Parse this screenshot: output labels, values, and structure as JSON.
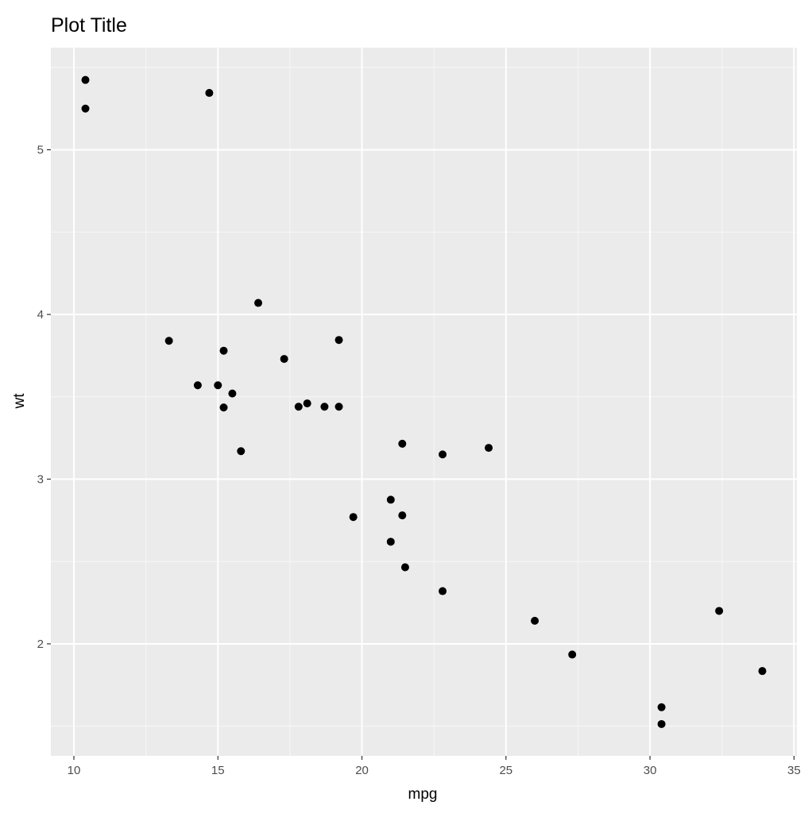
{
  "colors": {
    "panel_background": "#ebebeb",
    "grid_major": "#ffffff",
    "grid_minor": "#f5f5f5",
    "tick_mark": "#333333",
    "tick_label": "#4d4d4d",
    "point": "#000000"
  },
  "chart_data": {
    "type": "scatter",
    "title": "Plot Title",
    "xlabel": "mpg",
    "ylabel": "wt",
    "xlim": [
      9.2,
      35.1
    ],
    "ylim": [
      1.32,
      5.62
    ],
    "xticks": [
      10,
      15,
      20,
      25,
      30,
      35
    ],
    "xtick_labels": [
      "10",
      "15",
      "20",
      "25",
      "30",
      "35"
    ],
    "yticks": [
      2,
      3,
      4,
      5
    ],
    "ytick_labels": [
      "2",
      "3",
      "4",
      "5"
    ],
    "x_minor": [
      12.5,
      17.5,
      22.5,
      27.5,
      32.5
    ],
    "y_minor": [
      1.5,
      2.5,
      3.5,
      4.5,
      5.5
    ],
    "grid": true,
    "legend": "none",
    "points": [
      {
        "x": 21.0,
        "y": 2.62
      },
      {
        "x": 21.0,
        "y": 2.875
      },
      {
        "x": 22.8,
        "y": 2.32
      },
      {
        "x": 21.4,
        "y": 3.215
      },
      {
        "x": 18.7,
        "y": 3.44
      },
      {
        "x": 18.1,
        "y": 3.46
      },
      {
        "x": 14.3,
        "y": 3.57
      },
      {
        "x": 24.4,
        "y": 3.19
      },
      {
        "x": 22.8,
        "y": 3.15
      },
      {
        "x": 19.2,
        "y": 3.44
      },
      {
        "x": 17.8,
        "y": 3.44
      },
      {
        "x": 16.4,
        "y": 4.07
      },
      {
        "x": 17.3,
        "y": 3.73
      },
      {
        "x": 15.2,
        "y": 3.78
      },
      {
        "x": 10.4,
        "y": 5.25
      },
      {
        "x": 10.4,
        "y": 5.424
      },
      {
        "x": 14.7,
        "y": 5.345
      },
      {
        "x": 32.4,
        "y": 2.2
      },
      {
        "x": 30.4,
        "y": 1.615
      },
      {
        "x": 33.9,
        "y": 1.835
      },
      {
        "x": 21.5,
        "y": 2.465
      },
      {
        "x": 15.5,
        "y": 3.52
      },
      {
        "x": 15.2,
        "y": 3.435
      },
      {
        "x": 13.3,
        "y": 3.84
      },
      {
        "x": 19.2,
        "y": 3.845
      },
      {
        "x": 27.3,
        "y": 1.935
      },
      {
        "x": 26.0,
        "y": 2.14
      },
      {
        "x": 30.4,
        "y": 1.513
      },
      {
        "x": 15.8,
        "y": 3.17
      },
      {
        "x": 19.7,
        "y": 2.77
      },
      {
        "x": 15.0,
        "y": 3.57
      },
      {
        "x": 21.4,
        "y": 2.78
      }
    ]
  }
}
